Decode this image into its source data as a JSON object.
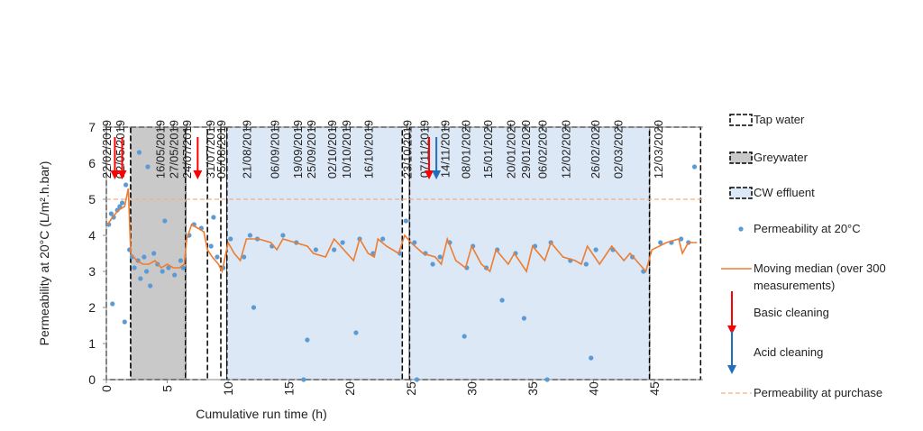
{
  "chart_data": {
    "type": "scatter",
    "xlabel": "Cumulative run time (h)",
    "ylabel": "Permeability at 20°C (L/m².h.bar)",
    "xlim": [
      0,
      49
    ],
    "ylim": [
      0,
      7
    ],
    "xticks": [
      0,
      5,
      10,
      15,
      20,
      25,
      30,
      35,
      40,
      45
    ],
    "yticks": [
      0,
      1,
      2,
      3,
      4,
      5,
      6,
      7
    ],
    "top_axis": {
      "x": [
        0,
        1.1,
        4.4,
        5.5,
        6.6,
        8.5,
        9.4,
        11.5,
        13.8,
        15.7,
        16.8,
        18.5,
        19.7,
        21.5,
        24.7,
        26.1,
        27.8,
        29.5,
        31.3,
        33.2,
        34.4,
        35.8,
        37.7,
        40.1,
        42,
        45.3
      ],
      "labels": [
        "22/02/2019",
        "02/05/2019",
        "16/05/2019",
        "27/05/2019",
        "24/07/2019",
        "31/07/2019",
        "05/08/2019",
        "21/08/2019",
        "06/09/2019",
        "19/09/2019",
        "25/09/2019",
        "02/10/2019",
        "10/10/2019",
        "16/10/2019",
        "23/10/2019",
        "07/11/2019",
        "14/11/2019",
        "08/01/2020",
        "15/01/2020",
        "20/01/2020",
        "29/01/2020",
        "06/02/2020",
        "12/02/2020",
        "26/02/2020",
        "02/03/2020",
        "12/03/2020"
      ]
    },
    "regions": [
      {
        "name": "Tap water",
        "fill": "#ffffff",
        "spans": [
          [
            0,
            2
          ],
          [
            6.5,
            8.3
          ],
          [
            9.4,
            9.9
          ],
          [
            24.3,
            24.9
          ],
          [
            44.6,
            48.8
          ]
        ]
      },
      {
        "name": "Greywater",
        "fill": "#c9c9c9",
        "spans": [
          [
            2,
            6.5
          ]
        ]
      },
      {
        "name": "CW effluent",
        "fill": "#dce8f6",
        "spans": [
          [
            9.9,
            24.3
          ],
          [
            24.9,
            44.6
          ]
        ]
      }
    ],
    "series": [
      {
        "name": "Permeability at 20°C",
        "color": "#5b9bd5",
        "x": [
          0.2,
          0.4,
          0.6,
          0.9,
          1.1,
          1.3,
          1.6,
          1.9,
          2.1,
          2.3,
          2.6,
          2.8,
          3.1,
          3.3,
          3.6,
          3.9,
          4.2,
          4.6,
          5.1,
          5.6,
          6.1,
          6.3,
          6.8,
          7.2,
          7.8,
          8.6,
          9.1,
          9.6,
          10.2,
          11.3,
          11.8,
          12.4,
          13.6,
          14.5,
          15.6,
          17.2,
          18.7,
          19.4,
          20.8,
          21.9,
          22.7,
          24.1,
          24.6,
          25.3,
          26.2,
          27.4,
          28.2,
          29.6,
          30.1,
          31.2,
          32.1,
          33.6,
          35.2,
          36.5,
          38.1,
          39.4,
          40.2,
          41.6,
          43.2,
          44.1,
          45.5,
          46.4,
          47.2,
          47.8,
          0.5,
          3.4,
          8.8,
          16.5,
          26.8,
          32.5,
          39.8,
          1.5,
          2.7,
          4.8,
          20.5,
          29.4,
          34.3,
          12.1,
          16.2,
          25.5,
          36.2,
          48.3
        ],
        "values": [
          4.3,
          4.6,
          4.5,
          4.7,
          4.8,
          4.9,
          5.4,
          3.6,
          3.4,
          3.1,
          3.3,
          2.8,
          3.4,
          3.0,
          2.6,
          3.5,
          3.2,
          3.0,
          3.1,
          2.9,
          3.3,
          3.1,
          4.0,
          4.3,
          4.2,
          3.7,
          3.4,
          3.1,
          3.9,
          3.4,
          4.0,
          3.9,
          3.7,
          4.0,
          3.8,
          3.6,
          3.6,
          3.8,
          3.9,
          3.5,
          3.9,
          3.5,
          4.4,
          3.8,
          3.5,
          3.4,
          3.8,
          3.1,
          3.7,
          3.1,
          3.6,
          3.5,
          3.7,
          3.8,
          3.3,
          3.2,
          3.6,
          3.6,
          3.4,
          3.0,
          3.8,
          3.8,
          3.9,
          3.8,
          2.1,
          5.9,
          4.5,
          1.1,
          3.2,
          2.2,
          0.6,
          1.6,
          6.3,
          4.4,
          1.3,
          1.2,
          1.7,
          2.0,
          0,
          0,
          0,
          5.9
        ]
      },
      {
        "name": "Moving median (over 300 measurements)",
        "color": "#ed7d31",
        "x": [
          0.1,
          0.5,
          1,
          1.5,
          1.8,
          2,
          2.5,
          3,
          3.5,
          4,
          4.5,
          5,
          5.5,
          6,
          6.4,
          6.6,
          7,
          7.5,
          8,
          8.3,
          8.7,
          9.2,
          9.5,
          10,
          10.5,
          11,
          11.5,
          12.5,
          13.5,
          14,
          14.5,
          15.5,
          16.5,
          17,
          18,
          18.7,
          19.5,
          20.3,
          20.8,
          21.5,
          22,
          22.3,
          23,
          24,
          24.5,
          25,
          26,
          27,
          27.5,
          28,
          28.7,
          29.5,
          30,
          30.8,
          31.5,
          32,
          33,
          33.5,
          34.5,
          35,
          36,
          36.5,
          37.5,
          38.5,
          39,
          39.5,
          40.5,
          41.5,
          42.5,
          43,
          44.3,
          44.8,
          46,
          47,
          47.3,
          47.8,
          48.5
        ],
        "values": [
          4.3,
          4.5,
          4.7,
          4.8,
          5.3,
          3.5,
          3.3,
          3.2,
          3.2,
          3.3,
          3.1,
          3.2,
          3.1,
          3.1,
          3.2,
          3.9,
          4.3,
          4.2,
          4.1,
          3.6,
          3.4,
          3.2,
          3.0,
          3.8,
          3.5,
          3.3,
          3.9,
          3.9,
          3.8,
          3.6,
          3.9,
          3.8,
          3.7,
          3.5,
          3.4,
          3.9,
          3.6,
          3.3,
          3.9,
          3.5,
          3.4,
          3.9,
          3.7,
          3.5,
          4.0,
          3.8,
          3.5,
          3.4,
          3.2,
          3.9,
          3.3,
          3.1,
          3.7,
          3.2,
          3.0,
          3.6,
          3.2,
          3.5,
          3.0,
          3.7,
          3.3,
          3.8,
          3.4,
          3.3,
          3.2,
          3.7,
          3.2,
          3.7,
          3.3,
          3.5,
          3.0,
          3.6,
          3.8,
          3.9,
          3.5,
          3.8,
          3.8
        ]
      }
    ],
    "arrows": [
      {
        "name": "Basic cleaning",
        "color": "#ff0000",
        "x": [
          0.7,
          1.3,
          7.5,
          26.5
        ]
      },
      {
        "name": "Acid cleaning",
        "color": "#1f6fbf",
        "x": [
          27.1
        ]
      }
    ],
    "reference_line": {
      "name": "Permeability at purchase",
      "value": 5,
      "color": "#f4b183"
    }
  }
}
